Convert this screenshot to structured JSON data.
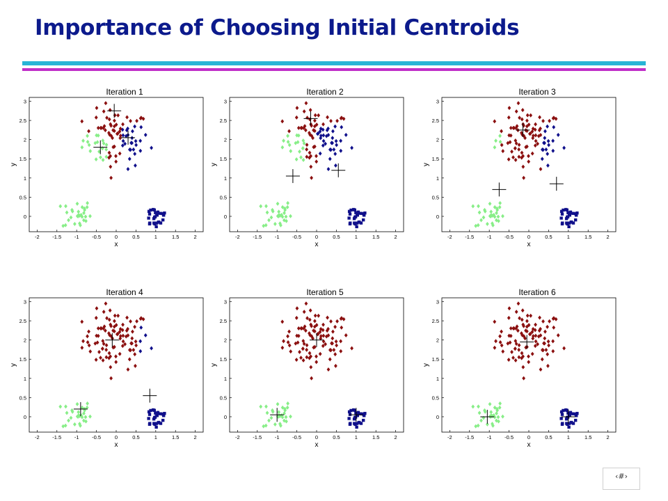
{
  "slide": {
    "title": "Importance of Choosing Initial Centroids",
    "page_number": "‹#›"
  },
  "colors": {
    "title": "#0c1a8c",
    "rule_top": "#28b4d6",
    "rule_bottom": "#c02fc8",
    "cluster_green": "#88ee88",
    "cluster_red": "#8b1010",
    "cluster_blue": "#10108b",
    "centroid": "#000000"
  },
  "chart_data": [
    {
      "type": "scatter",
      "title": "Iteration 1",
      "xlabel": "x",
      "ylabel": "y",
      "xlim": [
        -2.2,
        2.2
      ],
      "ylim": [
        -0.4,
        3.1
      ],
      "xticks": [
        "-2",
        "-1.5",
        "-1",
        "-0.5",
        "0",
        "0.5",
        "1",
        "1.5",
        "2"
      ],
      "yticks": [
        "0",
        "0.5",
        "1",
        "1.5",
        "2",
        "2.5",
        "3"
      ],
      "centroids": [
        [
          -0.4,
          1.8
        ],
        [
          -0.05,
          2.75
        ],
        [
          0.3,
          2.05
        ]
      ],
      "split": [
        -0.2,
        0.15
      ],
      "blue_group_color": "blue"
    },
    {
      "type": "scatter",
      "title": "Iteration 2",
      "xlabel": "x",
      "ylabel": "y",
      "xlim": [
        -2.2,
        2.2
      ],
      "ylim": [
        -0.4,
        3.1
      ],
      "xticks": [
        "-2",
        "-1.5",
        "-1",
        "-0.5",
        "0",
        "0.5",
        "1",
        "1.5",
        "2"
      ],
      "yticks": [
        "0",
        "0.5",
        "1",
        "1.5",
        "2",
        "2.5",
        "3"
      ],
      "centroids": [
        [
          -0.6,
          1.05
        ],
        [
          -0.15,
          2.55
        ],
        [
          0.55,
          1.2
        ]
      ],
      "split": [
        -0.3,
        0.0
      ],
      "blue_group_color": "blue"
    },
    {
      "type": "scatter",
      "title": "Iteration 3",
      "xlabel": "x",
      "ylabel": "y",
      "xlim": [
        -2.2,
        2.2
      ],
      "ylim": [
        -0.4,
        3.1
      ],
      "xticks": [
        "-2",
        "-1.5",
        "-1",
        "-0.5",
        "0",
        "0.5",
        "1",
        "1.5",
        "2"
      ],
      "yticks": [
        "0",
        "0.5",
        "1",
        "1.5",
        "2",
        "2.5",
        "3"
      ],
      "centroids": [
        [
          -0.75,
          0.7
        ],
        [
          -0.15,
          2.25
        ],
        [
          0.7,
          0.85
        ]
      ],
      "split": [
        -0.7,
        0.3
      ],
      "blue_group_color": "blue"
    },
    {
      "type": "scatter",
      "title": "Iteration 4",
      "xlabel": "x",
      "ylabel": "y",
      "xlim": [
        -2.2,
        2.2
      ],
      "ylim": [
        -0.4,
        3.1
      ],
      "xticks": [
        "-2",
        "-1.5",
        "-1",
        "-0.5",
        "0",
        "0.5",
        "1",
        "1.5",
        "2"
      ],
      "yticks": [
        "0",
        "0.5",
        "1",
        "1.5",
        "2",
        "2.5",
        "3"
      ],
      "centroids": [
        [
          -0.9,
          0.2
        ],
        [
          -0.1,
          2.0
        ],
        [
          0.85,
          0.55
        ]
      ],
      "split": [
        -0.9,
        0.6
      ],
      "blue_group_color": "blue"
    },
    {
      "type": "scatter",
      "title": "Iteration 5",
      "xlabel": "x",
      "ylabel": "y",
      "xlim": [
        -2.2,
        2.2
      ],
      "ylim": [
        -0.4,
        3.1
      ],
      "xticks": [
        "-2",
        "-1.5",
        "-1",
        "-0.5",
        "0",
        "0.5",
        "1",
        "1.5",
        "2"
      ],
      "yticks": [
        "0",
        "0.5",
        "1",
        "1.5",
        "2",
        "2.5",
        "3"
      ],
      "centroids": [
        [
          -1.0,
          0.05
        ],
        [
          0.0,
          2.0
        ],
        [
          1.0,
          0.05
        ]
      ],
      "split": [
        -1.2,
        0.9
      ],
      "blue_group_color": "blue"
    },
    {
      "type": "scatter",
      "title": "Iteration 6",
      "xlabel": "x",
      "ylabel": "y",
      "xlim": [
        -2.2,
        2.2
      ],
      "ylim": [
        -0.4,
        3.1
      ],
      "xticks": [
        "-2",
        "-1.5",
        "-1",
        "-0.5",
        "0",
        "0.5",
        "1",
        "1.5",
        "2"
      ],
      "yticks": [
        "0",
        "0.5",
        "1",
        "1.5",
        "2",
        "2.5",
        "3"
      ],
      "centroids": [
        [
          -1.05,
          0.0
        ],
        [
          -0.05,
          1.95
        ],
        [
          1.0,
          0.0
        ]
      ],
      "split": [
        -1.2,
        0.9
      ],
      "blue_group_color": "blue"
    }
  ]
}
